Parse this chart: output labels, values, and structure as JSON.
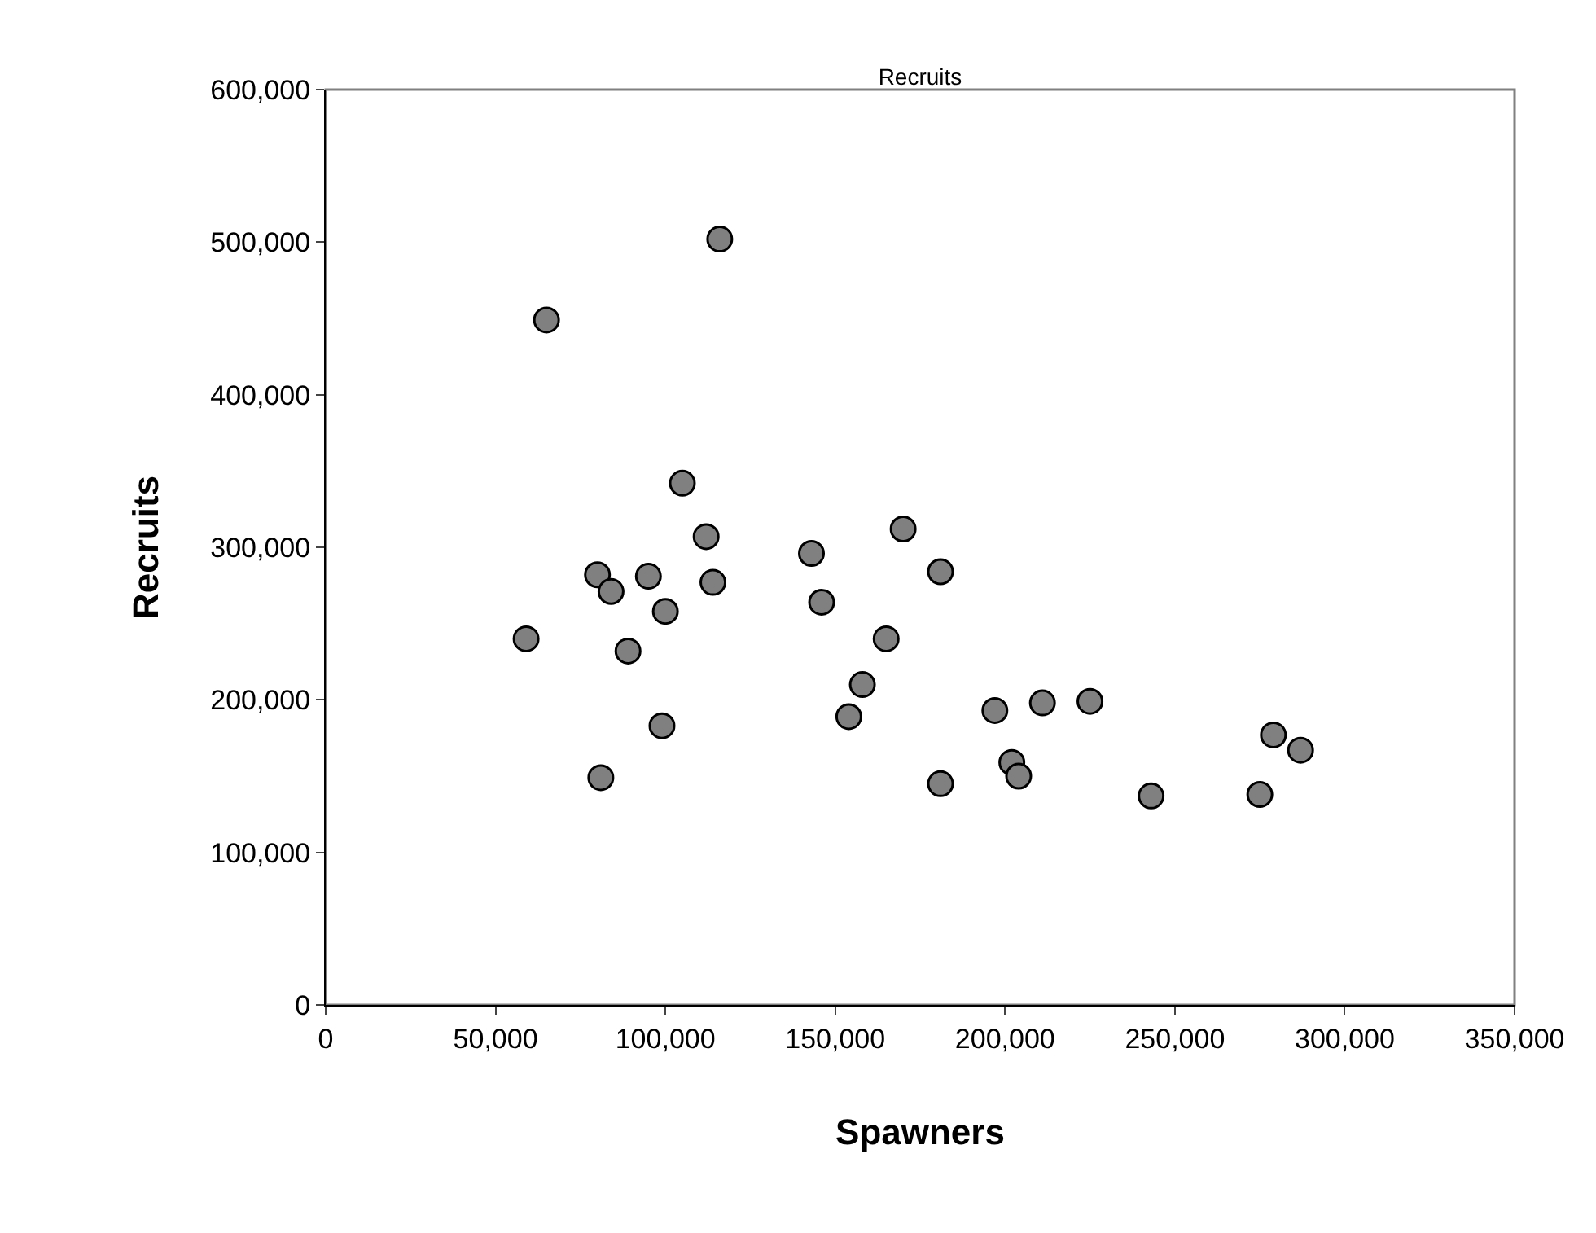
{
  "chart_data": {
    "type": "scatter",
    "title": "Recruits",
    "xlabel": "Spawners",
    "ylabel": "Recruits",
    "x": [
      59000,
      65000,
      80000,
      84000,
      89000,
      81000,
      95000,
      100000,
      99000,
      105000,
      112000,
      114000,
      116000,
      143000,
      146000,
      154000,
      158000,
      165000,
      170000,
      181000,
      181000,
      197000,
      202000,
      204000,
      211000,
      225000,
      243000,
      275000,
      279000,
      287000
    ],
    "series": [
      {
        "color": "#808080",
        "values": [
          240000,
          449000,
          282000,
          271000,
          232000,
          149000,
          281000,
          258000,
          183000,
          342000,
          307000,
          277000,
          502000,
          296000,
          264000,
          189000,
          210000,
          240000,
          312000,
          284000,
          145000,
          193000,
          159000,
          150000,
          198000,
          199000,
          137000,
          138000,
          177000,
          167000
        ]
      }
    ],
    "xlim": [
      0,
      350000
    ],
    "xticks": [
      {
        "value": 0,
        "label": "0"
      },
      {
        "value": 50000,
        "label": "50,000"
      },
      {
        "value": 100000,
        "label": "100,000"
      },
      {
        "value": 150000,
        "label": "150,000"
      },
      {
        "value": 200000,
        "label": "200,000"
      },
      {
        "value": 250000,
        "label": "250,000"
      },
      {
        "value": 300000,
        "label": "300,000"
      },
      {
        "value": 350000,
        "label": "350,000"
      }
    ],
    "ylim": [
      0,
      600000
    ],
    "yticks": [
      {
        "value": 0,
        "label": "0"
      },
      {
        "value": 100000,
        "label": "100,000"
      },
      {
        "value": 200000,
        "label": "200,000"
      },
      {
        "value": 300000,
        "label": "300,000"
      },
      {
        "value": 400000,
        "label": "400,000"
      },
      {
        "value": 500000,
        "label": "500,000"
      },
      {
        "value": 600000,
        "label": "600,000"
      }
    ],
    "grid": false,
    "marker": "circle"
  }
}
